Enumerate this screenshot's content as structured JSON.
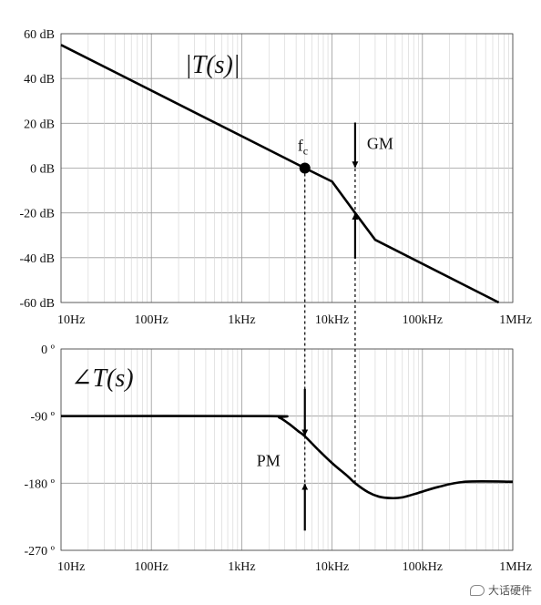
{
  "chart_data": [
    {
      "type": "line",
      "title": "|T(s)|",
      "x_scale": "log",
      "xlim": [
        10,
        1000000
      ],
      "ylim": [
        -60,
        60
      ],
      "x_ticks": [
        "10Hz",
        "100Hz",
        "1kHz",
        "10kHz",
        "100kHz",
        "1MHz"
      ],
      "y_ticks": [
        "60 dB",
        "40 dB",
        "20 dB",
        "0 dB",
        "-20 dB",
        "-40 dB",
        "-60 dB"
      ],
      "grid": true,
      "series": [
        {
          "x": [
            10,
            5000,
            10000,
            18000,
            30000,
            700000
          ],
          "y": [
            55,
            0,
            -6,
            -20,
            -32,
            -60
          ]
        }
      ],
      "annotations": [
        {
          "text": "f",
          "sub": "c",
          "x": 5000,
          "y": 0
        },
        {
          "text": "GM",
          "x": 18000,
          "from_y": 0,
          "to_y": -20
        }
      ]
    },
    {
      "type": "line",
      "title": "∠T(s)",
      "x_scale": "log",
      "xlim": [
        10,
        1000000
      ],
      "ylim": [
        -270,
        0
      ],
      "x_ticks": [
        "10Hz",
        "100Hz",
        "1kHz",
        "10kHz",
        "100kHz",
        "1MHz"
      ],
      "y_ticks": [
        "0 º",
        "-90 º",
        "-180 º",
        "-270 º"
      ],
      "grid": true,
      "series": [
        {
          "x": [
            10,
            2000,
            2600,
            3300,
            4200,
            5000,
            7000,
            10000,
            15000,
            18000,
            25000,
            33000,
            45000,
            60000,
            90000,
            150000,
            300000,
            1000000
          ],
          "y": [
            -90,
            -90,
            -92,
            -100,
            -110,
            -117,
            -135,
            -153,
            -171,
            -180,
            -192,
            -198,
            -200,
            -199,
            -193,
            -185,
            -178,
            -178
          ]
        }
      ],
      "annotations": [
        {
          "text": "PM",
          "x": 5000,
          "from_y": -117,
          "to_y": -180
        }
      ]
    }
  ],
  "watermark": {
    "text": "大话硬件",
    "icon": "chat-bubble-icon"
  }
}
